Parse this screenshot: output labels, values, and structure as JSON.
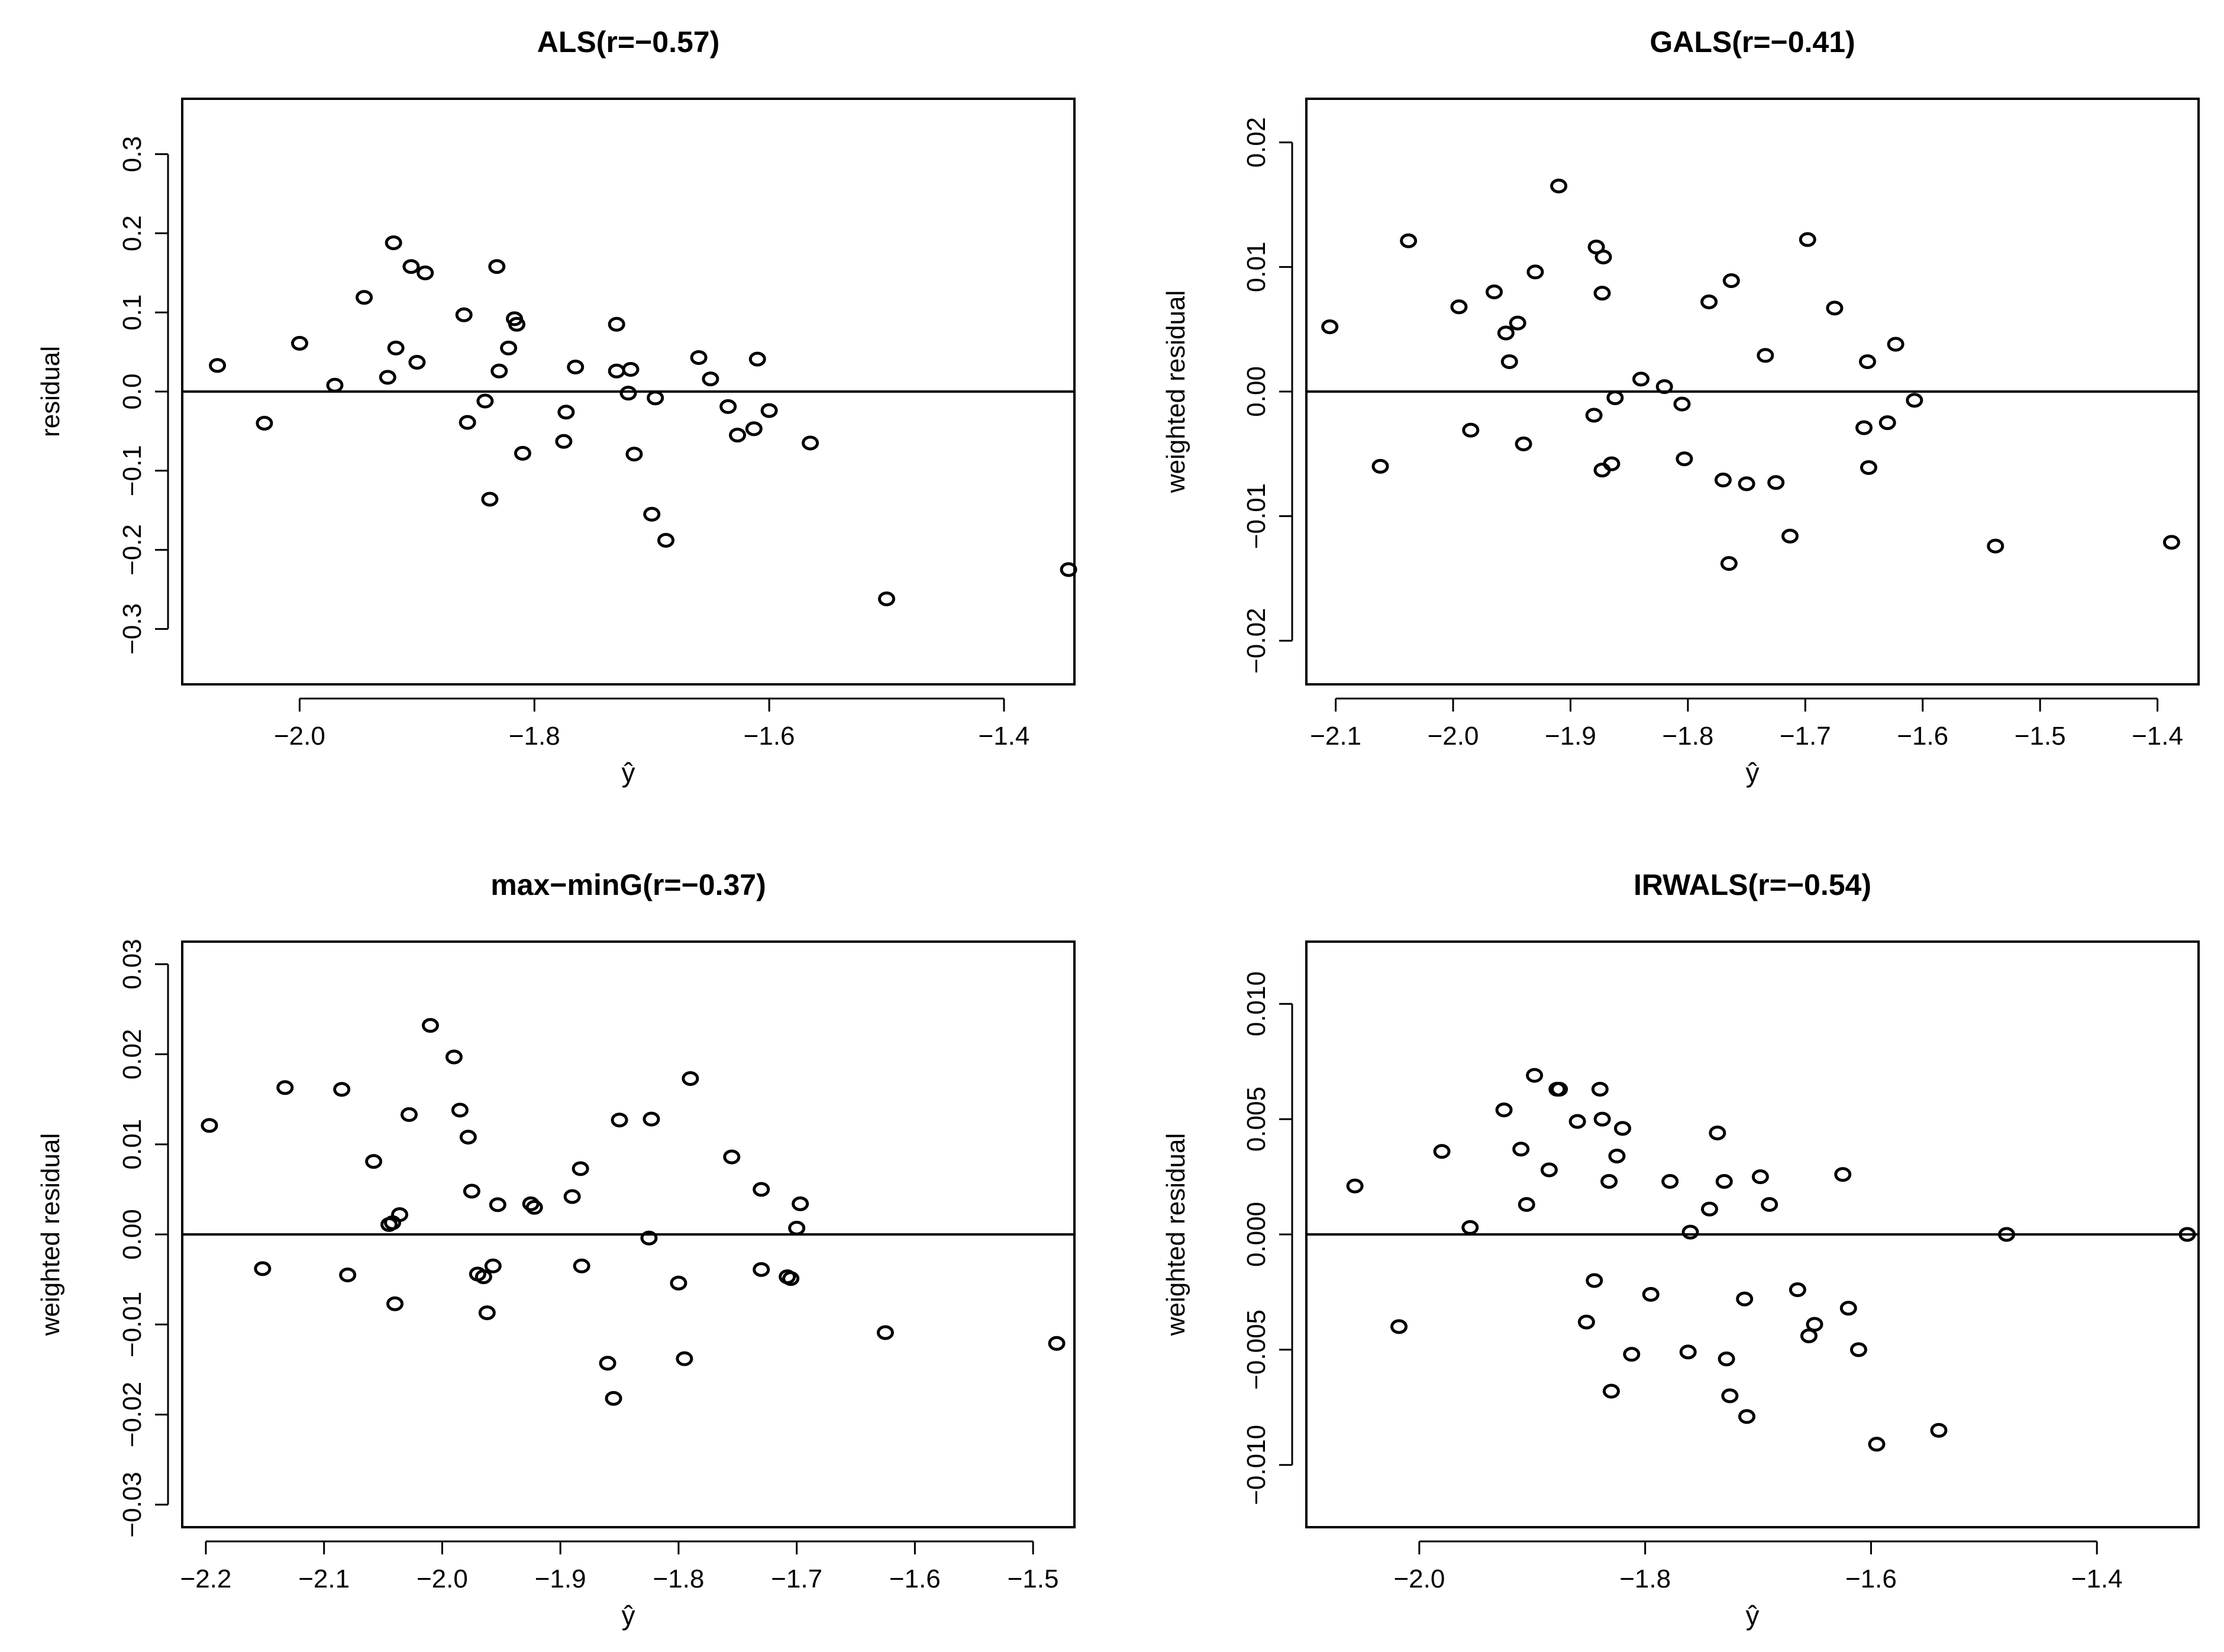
{
  "chart_data": [
    {
      "type": "scatter",
      "title": "ALS(r=−0.57)",
      "xlabel": "ŷ",
      "ylabel": "residual",
      "xlim": [
        -2.1,
        -1.34
      ],
      "ylim": [
        -0.37,
        0.37
      ],
      "xticks": [
        -2.0,
        -1.8,
        -1.6,
        -1.4
      ],
      "xtick_labels": [
        "−2.0",
        "−1.8",
        "−1.6",
        "−1.4"
      ],
      "yticks": [
        -0.3,
        -0.2,
        -0.1,
        0.0,
        0.1,
        0.2,
        0.3
      ],
      "ytick_labels": [
        "−0.3",
        "−0.2",
        "−0.1",
        "0.0",
        "0.1",
        "0.2",
        "0.3"
      ],
      "hline": 0,
      "x": [
        -2.07,
        -2.03,
        -2.0,
        -1.97,
        -1.945,
        -1.925,
        -1.92,
        -1.918,
        -1.9,
        -1.905,
        -1.893,
        -1.86,
        -1.857,
        -1.842,
        -1.838,
        -1.832,
        -1.83,
        -1.822,
        -1.817,
        -1.815,
        -1.81,
        -1.775,
        -1.773,
        -1.765,
        -1.73,
        -1.73,
        -1.72,
        -1.718,
        -1.715,
        -1.7,
        -1.697,
        -1.688,
        -1.66,
        -1.65,
        -1.635,
        -1.627,
        -1.613,
        -1.61,
        -1.6,
        -1.565,
        -1.5,
        -1.345
      ],
      "y": [
        0.033,
        -0.04,
        0.061,
        0.008,
        0.119,
        0.018,
        0.188,
        0.055,
        0.037,
        0.158,
        0.15,
        0.097,
        -0.039,
        -0.012,
        -0.136,
        0.158,
        0.026,
        0.055,
        0.092,
        0.085,
        -0.078,
        -0.063,
        -0.026,
        0.031,
        0.085,
        0.026,
        -0.002,
        0.028,
        -0.079,
        -0.155,
        -0.008,
        -0.188,
        0.043,
        0.016,
        -0.019,
        -0.055,
        -0.047,
        0.041,
        -0.024,
        -0.065,
        -0.262,
        -0.225
      ]
    },
    {
      "type": "scatter",
      "title": "GALS(r=−0.41)",
      "xlabel": "ŷ",
      "ylabel": "weighted residual",
      "xlim": [
        -2.125,
        -1.365
      ],
      "ylim": [
        -0.0235,
        0.0235
      ],
      "xticks": [
        -2.1,
        -2.0,
        -1.9,
        -1.8,
        -1.7,
        -1.6,
        -1.5,
        -1.4
      ],
      "xtick_labels": [
        "−2.1",
        "−2.0",
        "−1.9",
        "−1.8",
        "−1.7",
        "−1.6",
        "−1.5",
        "−1.4"
      ],
      "yticks": [
        -0.02,
        -0.01,
        0.0,
        0.01,
        0.02
      ],
      "ytick_labels": [
        "−0.02",
        "−0.01",
        "0.00",
        "0.01",
        "0.02"
      ],
      "hline": 0,
      "x": [
        -2.105,
        -2.062,
        -2.038,
        -1.995,
        -1.985,
        -1.965,
        -1.955,
        -1.952,
        -1.945,
        -1.94,
        -1.93,
        -1.91,
        -1.88,
        -1.878,
        -1.873,
        -1.872,
        -1.873,
        -1.865,
        -1.862,
        -1.84,
        -1.82,
        -1.805,
        -1.803,
        -1.782,
        -1.77,
        -1.765,
        -1.763,
        -1.75,
        -1.734,
        -1.725,
        -1.713,
        -1.698,
        -1.675,
        -1.65,
        -1.647,
        -1.646,
        -1.63,
        -1.623,
        -1.607,
        -1.538,
        -1.388
      ],
      "y": [
        0.0052,
        -0.006,
        0.0121,
        0.0068,
        -0.0031,
        0.008,
        0.0047,
        0.0024,
        0.0055,
        -0.0042,
        0.0096,
        0.0165,
        -0.0019,
        0.0116,
        -0.0063,
        0.0108,
        0.0079,
        -0.0058,
        -0.0005,
        0.001,
        0.0004,
        -0.001,
        -0.0054,
        0.0072,
        -0.0071,
        -0.0138,
        0.0089,
        -0.0074,
        0.0029,
        -0.0073,
        -0.0116,
        0.0122,
        0.0067,
        -0.0029,
        0.0024,
        -0.0061,
        -0.0025,
        0.0038,
        -0.0007,
        -0.0124,
        -0.0121
      ]
    },
    {
      "type": "scatter",
      "title": "max−minG(r=−0.37)",
      "xlabel": "ŷ",
      "ylabel": "weighted residual",
      "xlim": [
        -2.22,
        -1.465
      ],
      "ylim": [
        -0.0325,
        0.0325
      ],
      "xticks": [
        -2.2,
        -2.1,
        -2.0,
        -1.9,
        -1.8,
        -1.7,
        -1.6,
        -1.5
      ],
      "xtick_labels": [
        "−2.2",
        "−2.1",
        "−2.0",
        "−1.9",
        "−1.8",
        "−1.7",
        "−1.6",
        "−1.5"
      ],
      "yticks": [
        -0.03,
        -0.02,
        -0.01,
        0.0,
        0.01,
        0.02,
        0.03
      ],
      "ytick_labels": [
        "−0.03",
        "−0.02",
        "−0.01",
        "0.00",
        "0.01",
        "0.02",
        "0.03"
      ],
      "hline": 0,
      "x": [
        -2.197,
        -2.152,
        -2.133,
        -2.085,
        -2.08,
        -2.058,
        -2.045,
        -2.042,
        -2.04,
        -2.036,
        -2.028,
        -2.01,
        -1.99,
        -1.985,
        -1.978,
        -1.975,
        -1.97,
        -1.965,
        -1.962,
        -1.957,
        -1.953,
        -1.925,
        -1.922,
        -1.89,
        -1.883,
        -1.882,
        -1.86,
        -1.855,
        -1.85,
        -1.825,
        -1.823,
        -1.8,
        -1.795,
        -1.79,
        -1.755,
        -1.73,
        -1.73,
        -1.708,
        -1.705,
        -1.7,
        -1.697,
        -1.625,
        -1.48
      ],
      "y": [
        0.0121,
        -0.0038,
        0.0163,
        0.0161,
        -0.0045,
        0.0081,
        0.0011,
        0.0013,
        -0.0077,
        0.0022,
        0.0133,
        0.0232,
        0.0197,
        0.0138,
        0.0108,
        0.0048,
        -0.0044,
        -0.0047,
        -0.0087,
        -0.0035,
        0.0033,
        0.0034,
        0.003,
        0.0042,
        0.0073,
        -0.0035,
        -0.0143,
        -0.0182,
        0.0127,
        -0.0004,
        0.0128,
        -0.0054,
        -0.0138,
        0.0173,
        0.0086,
        0.005,
        -0.0039,
        -0.0047,
        -0.0049,
        0.0007,
        0.0034,
        -0.0109,
        -0.0121
      ]
    },
    {
      "type": "scatter",
      "title": "IRWALS(r=−0.54)",
      "xlabel": "ŷ",
      "ylabel": "weighted residual",
      "xlim": [
        -2.1,
        -1.31
      ],
      "ylim": [
        -0.0127,
        0.0127
      ],
      "xticks": [
        -2.0,
        -1.8,
        -1.6,
        -1.4
      ],
      "xtick_labels": [
        "−2.0",
        "−1.8",
        "−1.6",
        "−1.4"
      ],
      "yticks": [
        -0.01,
        -0.005,
        0.0,
        0.005,
        0.01
      ],
      "ytick_labels": [
        "−0.010",
        "−0.005",
        "0.000",
        "0.005",
        "0.010"
      ],
      "hline": 0,
      "x": [
        -2.057,
        -2.018,
        -1.98,
        -1.955,
        -1.925,
        -1.91,
        -1.905,
        -1.898,
        -1.885,
        -1.878,
        -1.876,
        -1.86,
        -1.852,
        -1.845,
        -1.84,
        -1.838,
        -1.832,
        -1.83,
        -1.825,
        -1.82,
        -1.812,
        -1.795,
        -1.778,
        -1.762,
        -1.76,
        -1.743,
        -1.736,
        -1.73,
        -1.728,
        -1.725,
        -1.712,
        -1.71,
        -1.698,
        -1.69,
        -1.665,
        -1.655,
        -1.65,
        -1.625,
        -1.62,
        -1.611,
        -1.595,
        -1.54,
        -1.48,
        -1.32
      ],
      "y": [
        0.0021,
        -0.004,
        0.0036,
        0.0003,
        0.0054,
        0.0037,
        0.0013,
        0.0069,
        0.0028,
        0.0063,
        0.0063,
        0.0049,
        -0.0038,
        -0.002,
        0.0063,
        0.005,
        0.0023,
        -0.0068,
        0.0034,
        0.0046,
        -0.0052,
        -0.0026,
        0.0023,
        -0.0051,
        0.0001,
        0.0011,
        0.0044,
        0.0023,
        -0.0054,
        -0.007,
        -0.0028,
        -0.0079,
        0.0025,
        0.0013,
        -0.0024,
        -0.0044,
        -0.0039,
        0.0026,
        -0.0032,
        -0.005,
        -0.0091,
        -0.0085,
        0.0,
        0.0
      ]
    }
  ]
}
